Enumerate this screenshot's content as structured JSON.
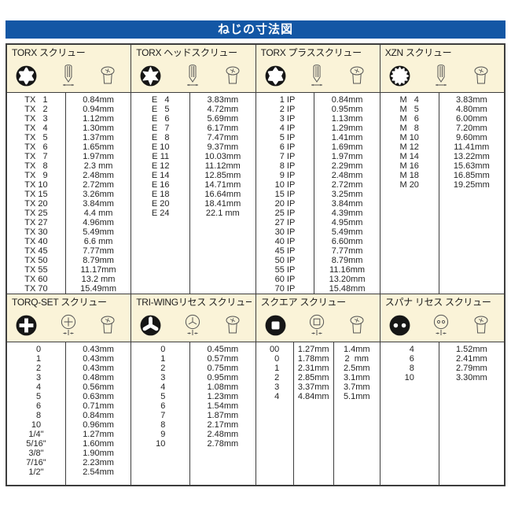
{
  "title": "ねじの寸法図",
  "colors": {
    "banner_blue": "#1357a5",
    "header_bg": "#faf3d8",
    "border": "#3d3d3d",
    "text": "#222222"
  },
  "unit_label": "mm",
  "sections": [
    {
      "columns": [
        {
          "id": "torx",
          "title": "TORX スクリュー",
          "recess_icon": "torx-recess-icon",
          "side_icon": "screw-side-view-icon",
          "head_icon": "screw-head-view-icon",
          "rows": [
            [
              "TX   1",
              "0.84mm"
            ],
            [
              "TX   2",
              "0.94mm"
            ],
            [
              "TX   3",
              "1.12mm"
            ],
            [
              "TX   4",
              "1.30mm"
            ],
            [
              "TX   5",
              "1.37mm"
            ],
            [
              "TX   6",
              "1.65mm"
            ],
            [
              "TX   7",
              "1.97mm"
            ],
            [
              "TX   8",
              "2.3 mm"
            ],
            [
              "TX   9",
              "2.48mm"
            ],
            [
              "TX 10",
              "2.72mm"
            ],
            [
              "TX 15",
              "3.26mm"
            ],
            [
              "TX 20",
              "3.84mm"
            ],
            [
              "TX 25",
              "4.4 mm"
            ],
            [
              "TX 27",
              "4.96mm"
            ],
            [
              "TX 30",
              "5.49mm"
            ],
            [
              "TX 40",
              "6.6 mm"
            ],
            [
              "TX 45",
              "7.77mm"
            ],
            [
              "TX 50",
              "8.79mm"
            ],
            [
              "TX 55",
              "11.17mm"
            ],
            [
              "TX 60",
              "13.2 mm"
            ],
            [
              "TX 70",
              "15.49mm"
            ]
          ]
        },
        {
          "id": "torx-head",
          "title": "TORX ヘッドスクリュー",
          "recess_icon": "torx-external-star-icon",
          "side_icon": "screw-side-view-icon",
          "head_icon": "screw-head-view-icon",
          "rows": [
            [
              "E   4",
              "3.83mm"
            ],
            [
              "E   5",
              "4.72mm"
            ],
            [
              "E   6",
              "5.69mm"
            ],
            [
              "E   7",
              "6.17mm"
            ],
            [
              "E   8",
              "7.47mm"
            ],
            [
              "E 10",
              "9.37mm"
            ],
            [
              "E 11",
              "10.03mm"
            ],
            [
              "E 12",
              "11.12mm"
            ],
            [
              "E 14",
              "12.85mm"
            ],
            [
              "E 16",
              "14.71mm"
            ],
            [
              "E 18",
              "16.64mm"
            ],
            [
              "E 20",
              "18.41mm"
            ],
            [
              "E 24",
              "22.1 mm"
            ]
          ]
        },
        {
          "id": "torx-plus",
          "title": "TORX プラススクリュー",
          "recess_icon": "torx-plus-recess-icon",
          "side_icon": "screw-side-view-icon",
          "head_icon": "screw-head-view-icon",
          "rows": [
            [
              "  1 IP",
              "0.84mm"
            ],
            [
              "  2 IP",
              "0.95mm"
            ],
            [
              "  3 IP",
              "1.13mm"
            ],
            [
              "  4 IP",
              "1.29mm"
            ],
            [
              "  5 IP",
              "1.41mm"
            ],
            [
              "  6 IP",
              "1.69mm"
            ],
            [
              "  7 IP",
              "1.97mm"
            ],
            [
              "  8 IP",
              "2.29mm"
            ],
            [
              "  9 IP",
              "2.48mm"
            ],
            [
              "10 IP",
              "2.72mm"
            ],
            [
              "15 IP",
              "3.25mm"
            ],
            [
              "20 IP",
              "3.84mm"
            ],
            [
              "25 IP",
              "4.39mm"
            ],
            [
              "27 IP",
              "4.95mm"
            ],
            [
              "30 IP",
              "5.49mm"
            ],
            [
              "40 IP",
              "6.60mm"
            ],
            [
              "45 IP",
              "7.77mm"
            ],
            [
              "50 IP",
              "8.79mm"
            ],
            [
              "55 IP",
              "11.16mm"
            ],
            [
              "60 IP",
              "13.20mm"
            ],
            [
              "70 IP",
              "15.48mm"
            ]
          ]
        },
        {
          "id": "xzn",
          "title": "XZN スクリュー",
          "recess_icon": "xzn-spline-icon",
          "side_icon": "screw-side-view-icon",
          "head_icon": "screw-head-view-icon",
          "rows": [
            [
              "M   4",
              "3.83mm"
            ],
            [
              "M   5",
              "4.80mm"
            ],
            [
              "M   6",
              "6.00mm"
            ],
            [
              "M   8",
              "7.20mm"
            ],
            [
              "M 10",
              "9.60mm"
            ],
            [
              "M 12",
              "11.41mm"
            ],
            [
              "M 14",
              "13.22mm"
            ],
            [
              "M 16",
              "15.63mm"
            ],
            [
              "M 18",
              "16.85mm"
            ],
            [
              "M 20",
              "19.25mm"
            ]
          ]
        }
      ]
    },
    {
      "columns": [
        {
          "id": "torq-set",
          "title": "TORQ-SET スクリュー",
          "recess_icon": "torq-set-recess-icon",
          "side_icon": "screw-front-view-icon",
          "head_icon": "screw-head-view-icon",
          "rows": [
            [
              "  0",
              "0.43mm"
            ],
            [
              "  1",
              "0.43mm"
            ],
            [
              "  2",
              "0.43mm"
            ],
            [
              "  3",
              "0.48mm"
            ],
            [
              "  4",
              "0.56mm"
            ],
            [
              "  5",
              "0.63mm"
            ],
            [
              "  6",
              "0.71mm"
            ],
            [
              "  8",
              "0.84mm"
            ],
            [
              "10",
              "0.96mm"
            ],
            [
              "1/4\"",
              "1.27mm"
            ],
            [
              "5/16\"",
              "1.60mm"
            ],
            [
              "3/8\"",
              "1.90mm"
            ],
            [
              "7/16\"",
              "2.23mm"
            ],
            [
              "1/2\"",
              "2.54mm"
            ]
          ]
        },
        {
          "id": "tri-wing",
          "title": "TRI-WINGリセス スクリュー",
          "recess_icon": "tri-wing-recess-icon",
          "side_icon": "screw-front-view-icon",
          "head_icon": "screw-head-view-icon",
          "rows": [
            [
              "  0",
              "0.45mm"
            ],
            [
              "  1",
              "0.57mm"
            ],
            [
              "  2",
              "0.75mm"
            ],
            [
              "  3",
              "0.95mm"
            ],
            [
              "  4",
              "1.08mm"
            ],
            [
              "  5",
              "1.23mm"
            ],
            [
              "  6",
              "1.54mm"
            ],
            [
              "  7",
              "1.87mm"
            ],
            [
              "  8",
              "2.17mm"
            ],
            [
              "  9",
              "2.48mm"
            ],
            [
              "10",
              "2.78mm"
            ]
          ]
        },
        {
          "id": "square",
          "title": "スクエア スクリュー",
          "recess_icon": "square-recess-icon",
          "side_icon": "screw-front-view-icon",
          "head_icon": "screw-head-view-icon",
          "rows": [
            [
              "00",
              "1.27mm",
              "1.4mm"
            ],
            [
              "  0",
              "1.78mm",
              "2  mm"
            ],
            [
              "  1",
              "2.31mm",
              "2.5mm"
            ],
            [
              "  2",
              "2.85mm",
              "3.1mm"
            ],
            [
              "  3",
              "3.37mm",
              "3.7mm"
            ],
            [
              "  4",
              "4.84mm",
              "5.1mm"
            ]
          ]
        },
        {
          "id": "spanner",
          "title": "スパナ リセス スクリュー",
          "recess_icon": "spanner-recess-icon",
          "side_icon": "screw-front-view-icon",
          "head_icon": "screw-head-view-icon",
          "rows": [
            [
              "  4",
              "1.52mm"
            ],
            [
              "  6",
              "2.41mm"
            ],
            [
              "  8",
              "2.79mm"
            ],
            [
              "10",
              "3.30mm"
            ]
          ]
        }
      ]
    }
  ]
}
